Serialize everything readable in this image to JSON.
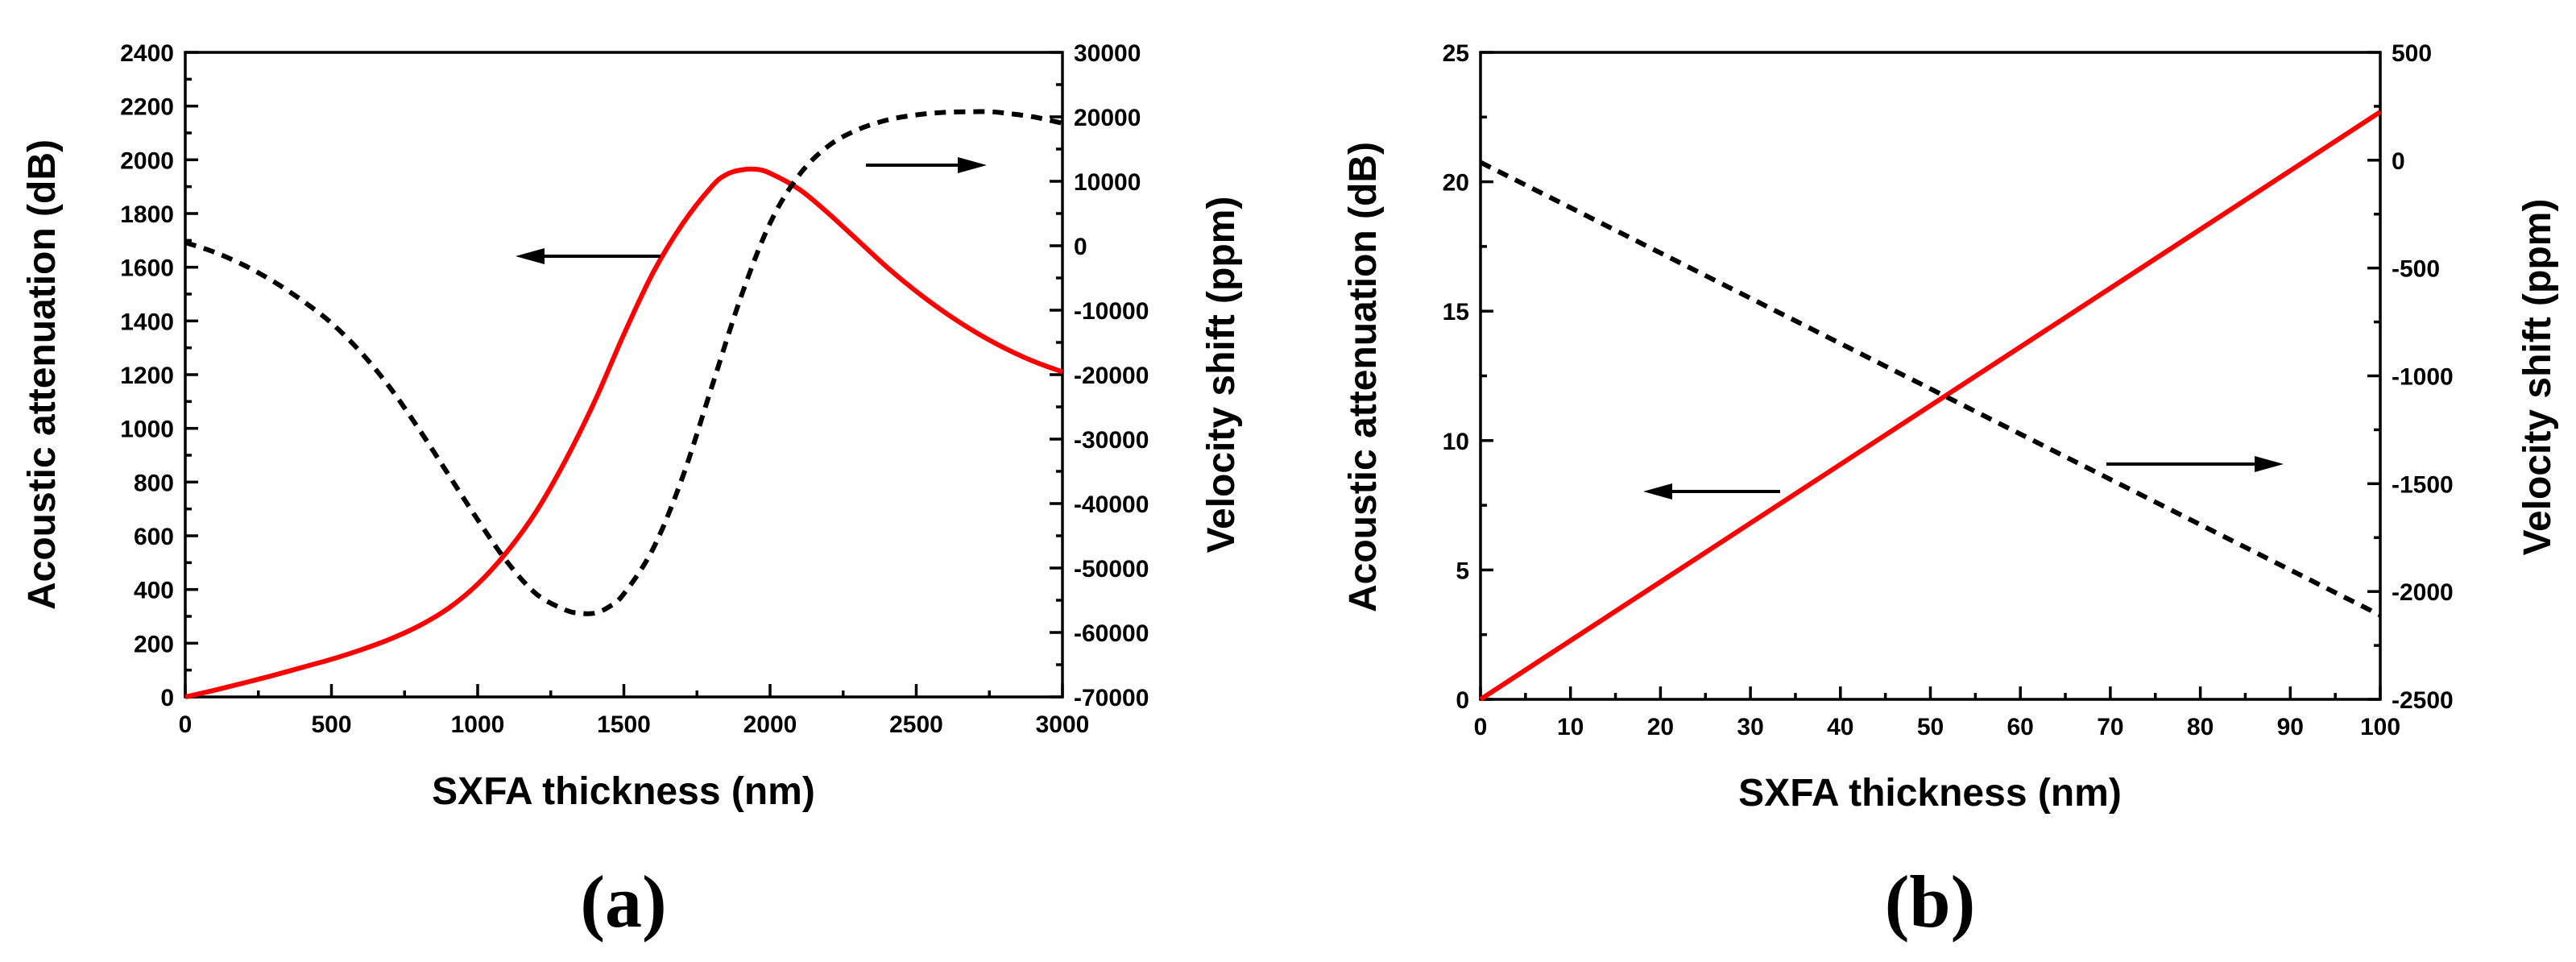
{
  "chart_data": [
    {
      "type": "line",
      "panel_label": "(a)",
      "xlabel": "SXFA thickness (nm)",
      "ylabel": "Acoustic attenuation (dB)",
      "y2label": "Velocity shift (ppm)",
      "xlim": [
        0,
        3000
      ],
      "ylim": [
        0,
        2400
      ],
      "y2lim": [
        -70000,
        30000
      ],
      "xticks": [
        0,
        500,
        1000,
        1500,
        2000,
        2500,
        3000
      ],
      "yticks": [
        0,
        200,
        400,
        600,
        800,
        1000,
        1200,
        1400,
        1600,
        1800,
        2000,
        2200,
        2400
      ],
      "y2ticks": [
        -70000,
        -60000,
        -50000,
        -40000,
        -30000,
        -20000,
        -10000,
        0,
        10000,
        20000,
        30000
      ],
      "grid": false,
      "series": [
        {
          "name": "Acoustic attenuation",
          "axis": "left",
          "color": "#ff0000",
          "style": "solid",
          "x": [
            0,
            100,
            200,
            300,
            400,
            500,
            600,
            700,
            800,
            900,
            1000,
            1100,
            1200,
            1300,
            1400,
            1500,
            1600,
            1700,
            1800,
            1850,
            1900,
            1950,
            2000,
            2100,
            2200,
            2300,
            2400,
            2500,
            2600,
            2700,
            2800,
            2900,
            3000
          ],
          "y": [
            0,
            25,
            52,
            80,
            110,
            140,
            175,
            215,
            265,
            330,
            420,
            540,
            690,
            880,
            1100,
            1350,
            1580,
            1760,
            1900,
            1945,
            1962,
            1965,
            1950,
            1890,
            1800,
            1700,
            1600,
            1510,
            1430,
            1360,
            1300,
            1250,
            1210
          ]
        },
        {
          "name": "Velocity shift",
          "axis": "right",
          "color": "#000000",
          "style": "dashed",
          "x": [
            0,
            100,
            200,
            300,
            400,
            500,
            600,
            700,
            800,
            900,
            1000,
            1100,
            1200,
            1300,
            1350,
            1400,
            1450,
            1500,
            1600,
            1700,
            1800,
            1900,
            2000,
            2100,
            2200,
            2300,
            2400,
            2500,
            2600,
            2700,
            2750,
            2800,
            2900,
            3000
          ],
          "y": [
            500,
            -1000,
            -3000,
            -5500,
            -8500,
            -12000,
            -16500,
            -22000,
            -28500,
            -35500,
            -42500,
            -49000,
            -54000,
            -56500,
            -57000,
            -57000,
            -56000,
            -54000,
            -47000,
            -36000,
            -22000,
            -8000,
            3500,
            11000,
            15500,
            18000,
            19500,
            20300,
            20700,
            20800,
            20800,
            20600,
            20000,
            19000
          ]
        }
      ],
      "annotations": [
        {
          "type": "arrow",
          "direction": "left",
          "indicates": "left axis"
        },
        {
          "type": "arrow",
          "direction": "right",
          "indicates": "right axis"
        }
      ]
    },
    {
      "type": "line",
      "panel_label": "(b)",
      "xlabel": "SXFA thickness (nm)",
      "ylabel": "Acoustic attenuation (dB)",
      "y2label": "Velocity shift (ppm)",
      "xlim": [
        0,
        100
      ],
      "ylim": [
        0,
        25
      ],
      "y2lim": [
        -2500,
        500
      ],
      "xticks": [
        0,
        10,
        20,
        30,
        40,
        50,
        60,
        70,
        80,
        90,
        100
      ],
      "yticks": [
        0,
        5,
        10,
        15,
        20,
        25
      ],
      "y2ticks": [
        -2500,
        -2000,
        -1500,
        -1000,
        -500,
        0,
        500
      ],
      "grid": false,
      "series": [
        {
          "name": "Acoustic attenuation",
          "axis": "left",
          "color": "#ff0000",
          "style": "solid",
          "x": [
            0,
            100
          ],
          "y": [
            0,
            22.7
          ]
        },
        {
          "name": "Velocity shift",
          "axis": "right",
          "color": "#000000",
          "style": "dashed",
          "x": [
            0,
            100
          ],
          "y": [
            -10,
            -2110
          ]
        }
      ],
      "annotations": [
        {
          "type": "arrow",
          "direction": "left",
          "indicates": "left axis"
        },
        {
          "type": "arrow",
          "direction": "right",
          "indicates": "right axis"
        }
      ]
    }
  ]
}
